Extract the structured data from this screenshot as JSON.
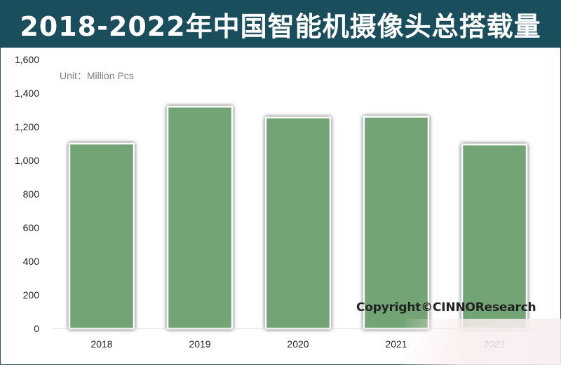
{
  "header": {
    "title": "2018-2022年中国智能机摄像头总搭载量"
  },
  "unit_label": "Unit：Million Pcs",
  "copyright": "Copyright©CINNOResearch",
  "colors": {
    "bar": "#73a475",
    "title_bg": "#1a4e5c",
    "title_text": "#ffffff"
  },
  "chart_data": {
    "type": "bar",
    "title": "2018-2022年中国智能机摄像头总搭载量",
    "categories": [
      "2018",
      "2019",
      "2020",
      "2021",
      "2022"
    ],
    "values": [
      1100,
      1320,
      1255,
      1260,
      1095
    ],
    "xlabel": "",
    "ylabel": "",
    "unit": "Million Pcs",
    "ylim": [
      0,
      1600
    ],
    "yticks": [
      0,
      200,
      400,
      600,
      800,
      1000,
      1200,
      1400,
      1600
    ],
    "ytick_labels": [
      "0",
      "200",
      "400",
      "600",
      "800",
      "1,000",
      "1,200",
      "1,400",
      "1,600"
    ],
    "grid": false,
    "legend": "none"
  }
}
